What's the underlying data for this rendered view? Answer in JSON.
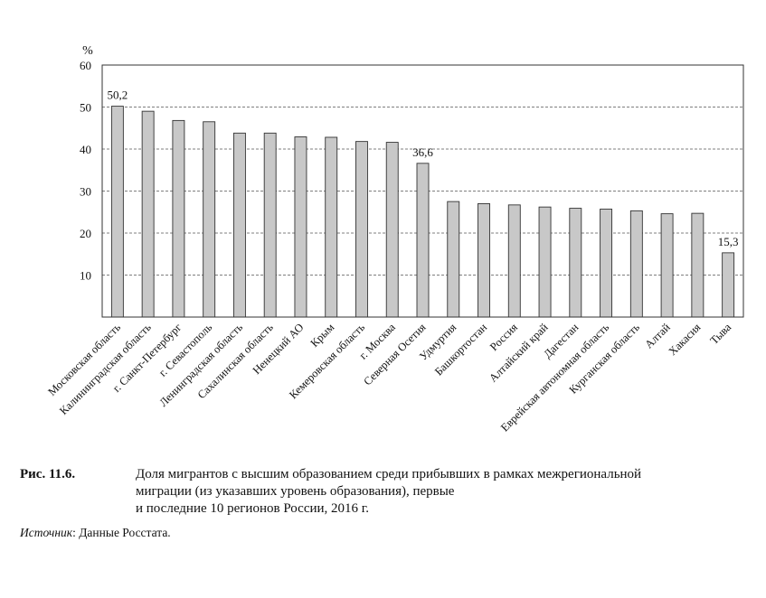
{
  "chart_data": {
    "type": "bar",
    "ylabel": "%",
    "ylim": [
      0,
      60
    ],
    "yticks": [
      10,
      20,
      30,
      40,
      50,
      60
    ],
    "grid": "horizontal-dashed",
    "bar_color": "#c8c8c8",
    "categories": [
      "Московская область",
      "Калининградская область",
      "г. Санкт-Петербург",
      "г. Севастополь",
      "Ленинградская область",
      "Сахалинская область",
      "Ненецкий АО",
      "Крым",
      "Кемеровская область",
      "г. Москва",
      "Северная Осетия",
      "Удмуртия",
      "Башкортостан",
      "Россия",
      "Алтайский край",
      "Дагестан",
      "Еврейская автономная область",
      "Курганская область",
      "Алтай",
      "Хакасия",
      "Тыва"
    ],
    "values": [
      50.2,
      49.0,
      46.8,
      46.5,
      43.8,
      43.8,
      42.9,
      42.8,
      41.8,
      41.6,
      36.6,
      27.5,
      27.0,
      26.7,
      26.2,
      25.9,
      25.7,
      25.3,
      24.6,
      24.7,
      15.3
    ],
    "data_labels": [
      {
        "index": 0,
        "text": "50,2"
      },
      {
        "index": 10,
        "text": "36,6"
      },
      {
        "index": 20,
        "text": "15,3"
      }
    ]
  },
  "caption": {
    "number": "Рис. 11.6.",
    "lines": [
      "Доля мигрантов с высшим образованием среди прибывших в рамках межрегиональной",
      "миграции (из указавших уровень образования), первые",
      "и последние 10 регионов России, 2016 г."
    ]
  },
  "source": {
    "label": "Источник",
    "text": ": Данные Росстата."
  }
}
